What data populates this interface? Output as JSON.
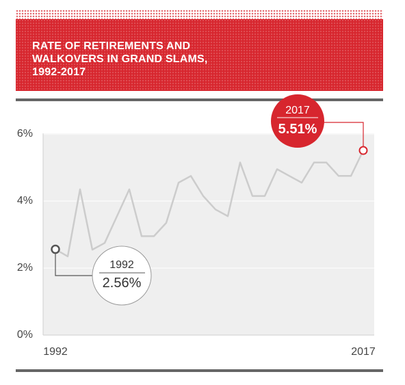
{
  "header": {
    "title": "RATE OF RETIREMENTS AND\nWALKOVERS IN GRAND SLAMS,\n1992-2017"
  },
  "colors": {
    "accent": "#d7262e",
    "line": "#cccccc",
    "plot_bg": "#efefef",
    "rule": "#666666"
  },
  "chart_data": {
    "type": "line",
    "title": "RATE OF RETIREMENTS AND WALKOVERS IN GRAND SLAMS, 1992-2017",
    "xlabel": "",
    "ylabel": "",
    "x": [
      1992,
      1993,
      1994,
      1995,
      1996,
      1997,
      1998,
      1999,
      2000,
      2001,
      2002,
      2003,
      2004,
      2005,
      2006,
      2007,
      2008,
      2009,
      2010,
      2011,
      2012,
      2013,
      2014,
      2015,
      2016,
      2017
    ],
    "values": [
      2.56,
      2.35,
      4.35,
      2.55,
      2.75,
      3.55,
      4.35,
      2.95,
      2.95,
      3.35,
      4.55,
      4.75,
      4.15,
      3.75,
      3.55,
      5.15,
      4.15,
      4.15,
      4.95,
      4.75,
      4.55,
      5.15,
      5.15,
      4.75,
      4.75,
      5.51
    ],
    "ylim": [
      0,
      6
    ],
    "y_ticks": [
      "0%",
      "2%",
      "4%",
      "6%"
    ],
    "x_ticks": [
      "1992",
      "2017"
    ],
    "grid": true,
    "annotations": [
      {
        "year": "1992",
        "value": "2.56%"
      },
      {
        "year": "2017",
        "value": "5.51%"
      }
    ]
  }
}
